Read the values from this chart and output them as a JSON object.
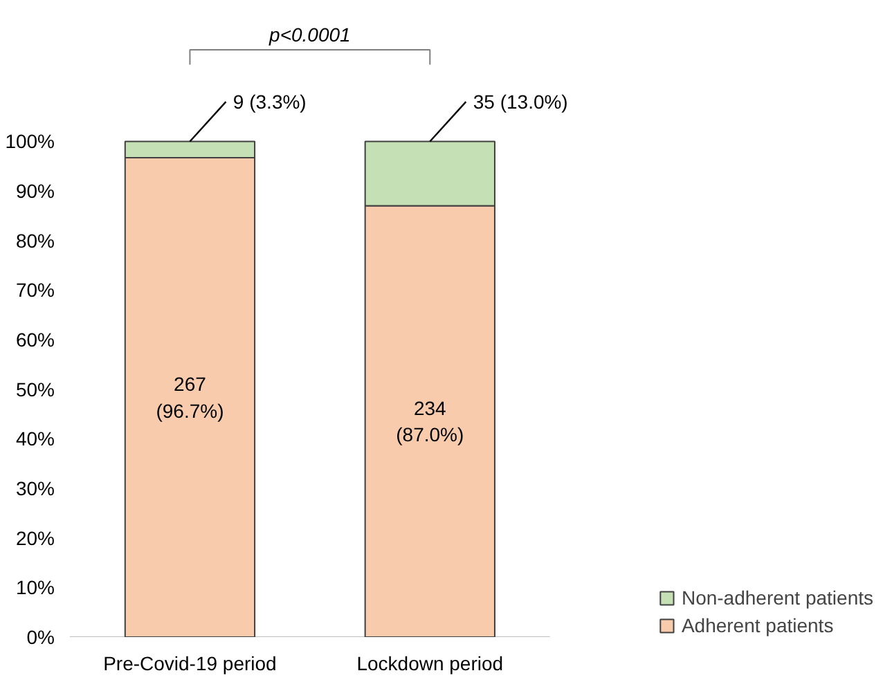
{
  "chart_data": {
    "type": "bar",
    "stacked": true,
    "categories": [
      "Pre-Covid-19 period",
      "Lockdown period"
    ],
    "series": [
      {
        "name": "Adherent patients",
        "color": "#f8cbad",
        "values": [
          96.7,
          87.0
        ],
        "value_labels": [
          "267\n(96.7%)",
          "234\n(87.0%)"
        ]
      },
      {
        "name": "Non-adherent patients",
        "color": "#c5e0b4",
        "values": [
          3.3,
          13.0
        ],
        "value_labels": [
          "9 (3.3%)",
          "35 (13.0%)"
        ]
      }
    ],
    "ylim": [
      0,
      100
    ],
    "yticks": [
      {
        "value": 0,
        "label": "0%"
      },
      {
        "value": 10,
        "label": "10%"
      },
      {
        "value": 20,
        "label": "20%"
      },
      {
        "value": 30,
        "label": "30%"
      },
      {
        "value": 40,
        "label": "40%"
      },
      {
        "value": 50,
        "label": "50%"
      },
      {
        "value": 60,
        "label": "60%"
      },
      {
        "value": 70,
        "label": "70%"
      },
      {
        "value": 80,
        "label": "80%"
      },
      {
        "value": 90,
        "label": "90%"
      },
      {
        "value": 100,
        "label": "100%"
      }
    ],
    "annotations": [
      "p<0.0001"
    ],
    "legend": "bottom right"
  }
}
